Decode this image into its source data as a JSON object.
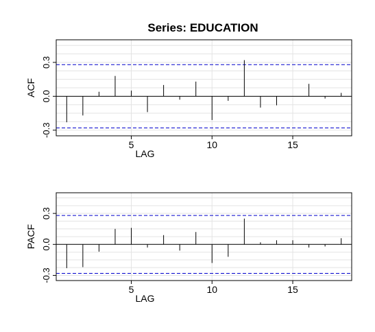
{
  "title": "Series:  EDUCATION",
  "colors": {
    "stem": "#000000",
    "band": "#0000cc",
    "grid": "#e3e3e3",
    "frame": "#000000"
  },
  "chart_data": [
    {
      "type": "bar",
      "ylabel": "ACF",
      "xlabel": "LAG",
      "xlim": [
        0.35,
        18.65
      ],
      "ylim": [
        -0.35,
        0.5
      ],
      "xticks": [
        5,
        10,
        15
      ],
      "yticks": [
        -0.3,
        0.0,
        0.3
      ],
      "ytick_labels": [
        "-0.3",
        "0.0",
        "0.3"
      ],
      "grid": true,
      "confidence_band": [
        -0.28,
        0.28
      ],
      "x": [
        1,
        2,
        3,
        4,
        5,
        6,
        7,
        8,
        9,
        10,
        11,
        12,
        13,
        14,
        15,
        16,
        17,
        18
      ],
      "values": [
        -0.23,
        -0.17,
        0.04,
        0.18,
        0.05,
        -0.14,
        0.1,
        -0.03,
        0.13,
        -0.21,
        -0.04,
        0.32,
        -0.1,
        -0.08,
        0.0,
        0.11,
        -0.02,
        0.03
      ]
    },
    {
      "type": "bar",
      "ylabel": "PACF",
      "xlabel": "LAG",
      "xlim": [
        0.35,
        18.65
      ],
      "ylim": [
        -0.35,
        0.5
      ],
      "xticks": [
        5,
        10,
        15
      ],
      "yticks": [
        -0.3,
        0.0,
        0.3
      ],
      "ytick_labels": [
        "-0.3",
        "0.0",
        "0.3"
      ],
      "grid": true,
      "confidence_band": [
        -0.28,
        0.28
      ],
      "x": [
        1,
        2,
        3,
        4,
        5,
        6,
        7,
        8,
        9,
        10,
        11,
        12,
        13,
        14,
        15,
        16,
        17,
        18
      ],
      "values": [
        -0.23,
        -0.22,
        -0.07,
        0.15,
        0.16,
        -0.03,
        0.09,
        -0.06,
        0.12,
        -0.18,
        -0.12,
        0.25,
        0.02,
        0.04,
        0.04,
        -0.03,
        -0.02,
        0.06
      ]
    }
  ]
}
